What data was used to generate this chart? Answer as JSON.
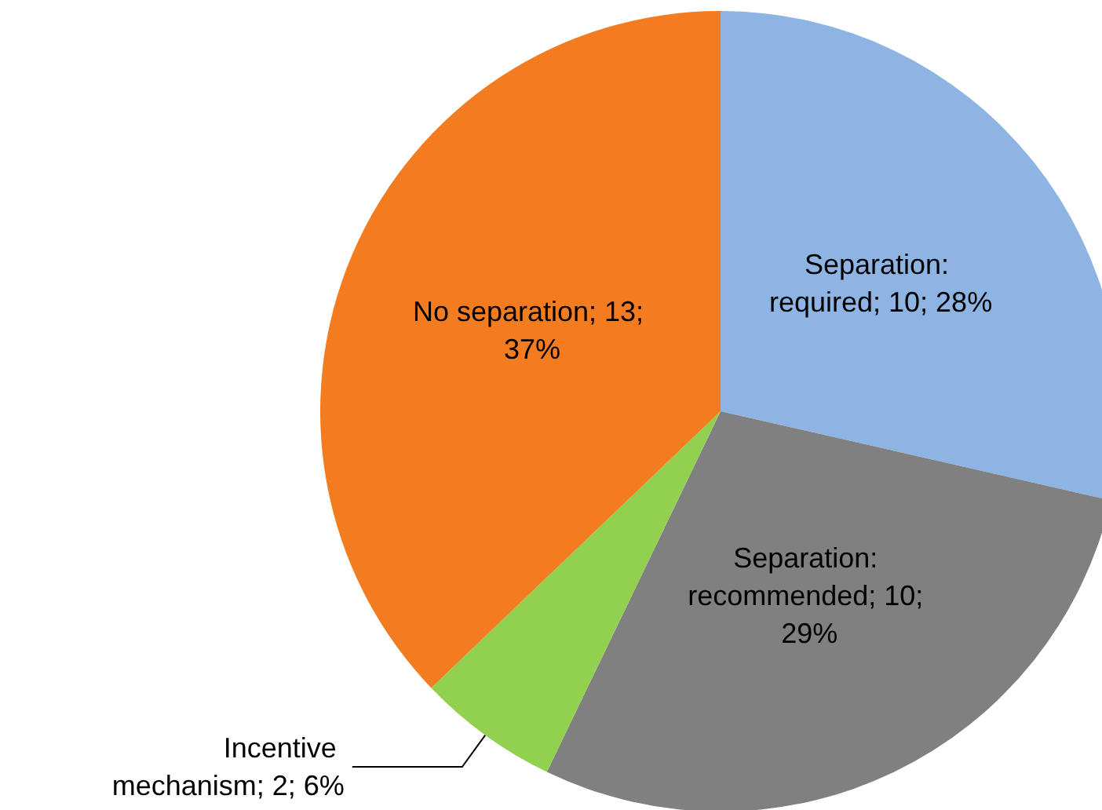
{
  "chart_data": {
    "type": "pie",
    "categories": [
      "Separation: required",
      "Separation: recommended",
      "Incentive mechanism",
      "No separation"
    ],
    "values": [
      10,
      10,
      2,
      13
    ],
    "value_labels": [
      "10; 28%",
      "10; 29%",
      "2; 6%",
      "13; 37%"
    ],
    "colors": [
      "#8eb4e3",
      "#808080",
      "#92d050",
      "#f47c20"
    ],
    "legend": false
  }
}
